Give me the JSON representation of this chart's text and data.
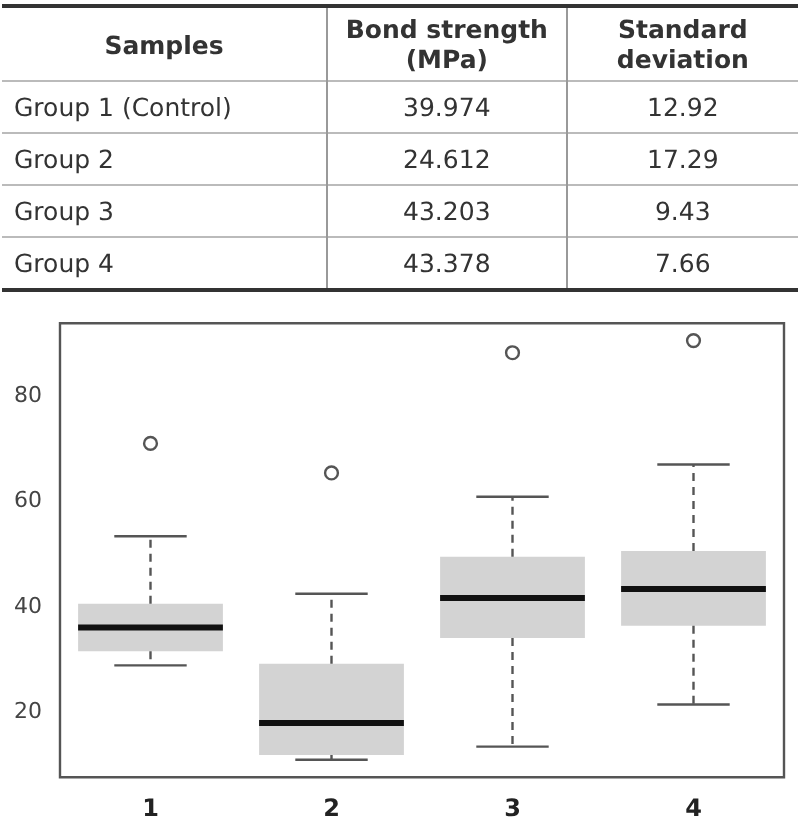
{
  "chart_data": [
    {
      "type": "other",
      "annotations": [
        "Samples",
        "Bond strength (MPa)",
        "Standard deviation",
        "Group 1 (Control)",
        "39.974",
        "12.92",
        "Group 2",
        "24.612",
        "17.29",
        "Group 3",
        "43.203",
        "9.43",
        "Group 4",
        "43.378",
        "7.66"
      ]
    },
    {
      "type": "box",
      "categories": [
        "1",
        "2",
        "3",
        "4"
      ],
      "color": "#d3d3d3",
      "ylim": [
        7.7,
        93.8
      ],
      "yticks": [
        20,
        40,
        60,
        80
      ],
      "grid": false,
      "boxes": [
        {
          "low": 28.9,
          "q1": 31.6,
          "median": 36.1,
          "q3": 40.6,
          "high": 53.4,
          "outliers": [
            71
          ]
        },
        {
          "low": 11,
          "q1": 11.9,
          "median": 18,
          "q3": 29.2,
          "high": 42.5,
          "outliers": [
            65.4
          ]
        },
        {
          "low": 13.5,
          "q1": 34.1,
          "median": 41.7,
          "q3": 49.5,
          "high": 60.9,
          "outliers": [
            88.2
          ]
        },
        {
          "low": 21.5,
          "q1": 36.4,
          "median": 43.4,
          "q3": 50.6,
          "high": 67,
          "outliers": [
            90.5
          ]
        }
      ]
    }
  ]
}
